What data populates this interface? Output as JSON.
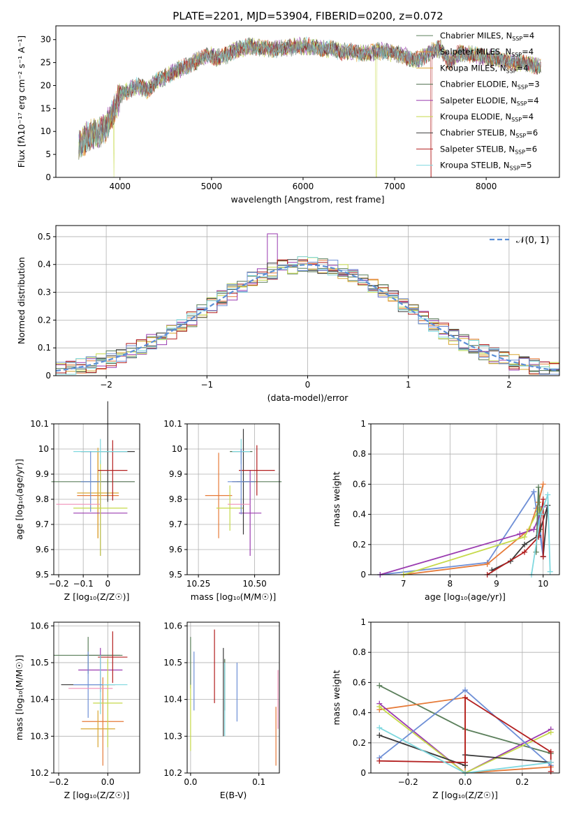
{
  "figure": {
    "title": "PLATE=2201, MJD=53904, FIBERID=0200, z=0.072",
    "colors": [
      "#5b7f5b",
      "#e67a38",
      "#d9a630",
      "#4f6f4f",
      "#9a3bb0",
      "#c6d94a",
      "#3a3a3a",
      "#b31f1f",
      "#7fd8df",
      "#6e8fd6",
      "#f08fb8"
    ]
  },
  "chart_data": [
    {
      "type": "line",
      "name": "spectrum",
      "xlabel": "wavelength [Angstrom, rest frame]",
      "ylabel": "Flux [fλ10⁻¹⁷ erg cm⁻² s⁻¹ A⁻¹]",
      "xlim": [
        3300,
        8800
      ],
      "ylim": [
        0,
        33
      ],
      "xticks": [
        4000,
        5000,
        6000,
        7000,
        8000
      ],
      "yticks": [
        0,
        5,
        10,
        15,
        20,
        25,
        30
      ],
      "grid": false,
      "legend_position": "top-right",
      "legend": [
        {
          "label": "Chabrier MILES, N",
          "sub": "SSP",
          "tail": "=4",
          "color": "#5b7f5b"
        },
        {
          "label": "Salpeter MILES, N",
          "sub": "SSP",
          "tail": "=4",
          "color": "#e67a38"
        },
        {
          "label": "Kroupa MILES, N",
          "sub": "SSP",
          "tail": "=4",
          "color": "#d9a630"
        },
        {
          "label": "Chabrier ELODIE, N",
          "sub": "SSP",
          "tail": "=3",
          "color": "#4f6f4f"
        },
        {
          "label": "Salpeter ELODIE, N",
          "sub": "SSP",
          "tail": "=4",
          "color": "#9a3bb0"
        },
        {
          "label": "Kroupa ELODIE, N",
          "sub": "SSP",
          "tail": "=4",
          "color": "#c6d94a"
        },
        {
          "label": "Chabrier STELIB, N",
          "sub": "SSP",
          "tail": "=6",
          "color": "#3a3a3a"
        },
        {
          "label": "Salpeter STELIB, N",
          "sub": "SSP",
          "tail": "=6",
          "color": "#b31f1f"
        },
        {
          "label": "Kroupa STELIB, N",
          "sub": "SSP",
          "tail": "=5",
          "color": "#7fd8df"
        }
      ],
      "continuum": [
        [
          3550,
          7
        ],
        [
          3650,
          9
        ],
        [
          3750,
          9.5
        ],
        [
          3850,
          11
        ],
        [
          3950,
          15
        ],
        [
          4000,
          18
        ],
        [
          4100,
          19
        ],
        [
          4200,
          20
        ],
        [
          4300,
          19
        ],
        [
          4400,
          21
        ],
        [
          4500,
          22
        ],
        [
          4600,
          23
        ],
        [
          4700,
          24
        ],
        [
          4800,
          25
        ],
        [
          4900,
          26
        ],
        [
          5000,
          26.5
        ],
        [
          5100,
          26
        ],
        [
          5200,
          27
        ],
        [
          5300,
          28
        ],
        [
          5400,
          28.5
        ],
        [
          5500,
          28.5
        ],
        [
          5600,
          28
        ],
        [
          5700,
          28
        ],
        [
          5800,
          28
        ],
        [
          5900,
          28.5
        ],
        [
          6000,
          28.5
        ],
        [
          6100,
          28.5
        ],
        [
          6200,
          28
        ],
        [
          6300,
          28
        ],
        [
          6400,
          27.5
        ],
        [
          6500,
          27.5
        ],
        [
          6600,
          27
        ],
        [
          6700,
          27
        ],
        [
          6800,
          27.5
        ],
        [
          6900,
          27.5
        ],
        [
          7000,
          27
        ],
        [
          7100,
          26.5
        ],
        [
          7200,
          25.5
        ],
        [
          7300,
          26
        ],
        [
          7400,
          27.5
        ],
        [
          7500,
          28
        ],
        [
          7600,
          25
        ],
        [
          7700,
          27
        ],
        [
          7800,
          27
        ],
        [
          7900,
          26.5
        ],
        [
          8000,
          26
        ],
        [
          8100,
          26
        ],
        [
          8200,
          25.5
        ],
        [
          8300,
          25
        ],
        [
          8400,
          25
        ],
        [
          8500,
          24.5
        ],
        [
          8600,
          24
        ]
      ]
    },
    {
      "type": "bar",
      "name": "residual histogram",
      "xlabel": "(data-model)/error",
      "ylabel": "Normed distribution",
      "xlim": [
        -2.5,
        2.5
      ],
      "ylim": [
        0,
        0.54
      ],
      "xticks": [
        -2,
        -1,
        0,
        1,
        2
      ],
      "yticks": [
        0,
        0.1,
        0.2,
        0.3,
        0.4,
        0.5
      ],
      "grid": true,
      "legend_position": "top-right",
      "legend": [
        {
          "label": "𝒩(0, 1)",
          "color": "#5b8fd6"
        }
      ]
    },
    {
      "type": "scatter",
      "name": "age vs Z",
      "xlabel": "Z [log₁₀(Z/Z☉)]",
      "ylabel": "age [log₁₀(age/yr)]",
      "xlim": [
        -0.22,
        0.13
      ],
      "ylim": [
        9.5,
        10.1
      ],
      "xticks": [
        -0.2,
        -0.1,
        0.0
      ],
      "yticks": [
        9.5,
        9.6,
        9.7,
        9.8,
        9.9,
        10.0,
        10.1
      ],
      "grid": true,
      "points": [
        {
          "x": -0.13,
          "xerr": 0.1,
          "y": 9.87,
          "yerr": 0.0,
          "color": "#5b7f5b"
        },
        {
          "x": -0.04,
          "xerr": 0.085,
          "y": 9.815,
          "yerr": 0.17,
          "color": "#e67a38"
        },
        {
          "x": -0.04,
          "xerr": 0.085,
          "y": 9.825,
          "yerr": 0.18,
          "color": "#d9a630"
        },
        {
          "x": 0.0,
          "xerr": 0.11,
          "y": 9.87,
          "yerr": 0.0,
          "color": "#4f6f4f"
        },
        {
          "x": -0.03,
          "xerr": 0.11,
          "y": 9.745,
          "yerr": 0.17,
          "color": "#9a3bb0"
        },
        {
          "x": -0.03,
          "xerr": 0.11,
          "y": 9.765,
          "yerr": 0.19,
          "color": "#c6d94a"
        },
        {
          "x": 0.0,
          "xerr": 0.11,
          "y": 9.99,
          "yerr": 0.2,
          "color": "#3a3a3a"
        },
        {
          "x": 0.02,
          "xerr": 0.06,
          "y": 9.915,
          "yerr": 0.12,
          "color": "#b31f1f"
        },
        {
          "x": -0.03,
          "xerr": 0.11,
          "y": 9.99,
          "yerr": 0.05,
          "color": "#7fd8df"
        },
        {
          "x": -0.07,
          "xerr": 0.04,
          "y": 9.87,
          "yerr": 0.12,
          "color": "#6e8fd6"
        },
        {
          "x": -0.12,
          "xerr": 0.09,
          "y": 9.78,
          "yerr": 0.0,
          "color": "#f08fb8"
        }
      ]
    },
    {
      "type": "scatter",
      "name": "age vs mass",
      "xlabel": "mass [log₁₀(M/M☉)]",
      "ylabel": "",
      "xlim": [
        10.2,
        10.61
      ],
      "ylim": [
        9.5,
        10.1
      ],
      "xticks": [
        10.25,
        10.5
      ],
      "xticklabels": [
        "10.25",
        "10.50"
      ],
      "yticks": [
        9.5,
        9.6,
        9.7,
        9.8,
        9.9,
        10.0,
        10.1
      ],
      "grid": true,
      "points": [
        {
          "x": 10.52,
          "xerr": 0.1,
          "y": 9.87,
          "yerr": 0.0,
          "color": "#5b7f5b"
        },
        {
          "x": 10.34,
          "xerr": 0.06,
          "y": 9.815,
          "yerr": 0.17,
          "color": "#e67a38"
        },
        {
          "x": 10.44,
          "xerr": 0.05,
          "y": 9.99,
          "yerr": 0.0,
          "color": "#4f6f4f"
        },
        {
          "x": 10.48,
          "xerr": 0.05,
          "y": 9.745,
          "yerr": 0.17,
          "color": "#9a3bb0"
        },
        {
          "x": 10.39,
          "xerr": 0.06,
          "y": 9.765,
          "yerr": 0.09,
          "color": "#c6d94a"
        },
        {
          "x": 10.45,
          "xerr": 0.05,
          "y": 9.87,
          "yerr": 0.21,
          "color": "#3a3a3a"
        },
        {
          "x": 10.51,
          "xerr": 0.08,
          "y": 9.915,
          "yerr": 0.1,
          "color": "#b31f1f"
        },
        {
          "x": 10.44,
          "xerr": 0.04,
          "y": 9.99,
          "yerr": 0.05,
          "color": "#7fd8df"
        },
        {
          "x": 10.44,
          "xerr": 0.06,
          "y": 9.87,
          "yerr": 0.13,
          "color": "#6e8fd6"
        },
        {
          "x": 10.43,
          "xerr": 0.05,
          "y": 9.78,
          "yerr": 0.0,
          "color": "#f08fb8"
        }
      ]
    },
    {
      "type": "line",
      "name": "mass weight vs age",
      "xlabel": "age [log₁₀(age/yr)]",
      "ylabel": "mass weight",
      "xlim": [
        6.3,
        10.35
      ],
      "ylim": [
        0,
        1.0
      ],
      "xticks": [
        7,
        8,
        9,
        10
      ],
      "yticks": [
        0,
        0.2,
        0.4,
        0.6,
        0.8,
        1.0
      ],
      "grid": true,
      "series": [
        {
          "color": "#6e8fd6",
          "points": [
            [
              6.5,
              0
            ],
            [
              8.8,
              0.08
            ],
            [
              9.8,
              0.55
            ],
            [
              10.0,
              0.12
            ],
            [
              9.9,
              0.4
            ],
            [
              9.85,
              0.44
            ]
          ]
        },
        {
          "color": "#e67a38",
          "points": [
            [
              7.0,
              0
            ],
            [
              8.8,
              0.07
            ],
            [
              9.7,
              0.3
            ],
            [
              9.9,
              0.48
            ],
            [
              10.0,
              0.6
            ]
          ]
        },
        {
          "color": "#9a3bb0",
          "points": [
            [
              6.5,
              0
            ],
            [
              9.5,
              0.27
            ],
            [
              9.8,
              0.3
            ],
            [
              10.0,
              0.45
            ]
          ]
        },
        {
          "color": "#c6d94a",
          "points": [
            [
              7.0,
              0
            ],
            [
              9.6,
              0.25
            ],
            [
              9.9,
              0.43
            ],
            [
              9.95,
              0.43
            ]
          ]
        },
        {
          "color": "#5b7f5b",
          "points": [
            [
              9.85,
              0.15
            ],
            [
              9.9,
              0.58
            ],
            [
              9.95,
              0.3
            ]
          ]
        },
        {
          "color": "#3a3a3a",
          "points": [
            [
              8.9,
              0.03
            ],
            [
              9.3,
              0.09
            ],
            [
              9.6,
              0.2
            ],
            [
              9.9,
              0.26
            ],
            [
              10.1,
              0.46
            ],
            [
              10.0,
              0.12
            ]
          ]
        },
        {
          "color": "#b31f1f",
          "points": [
            [
              8.8,
              0
            ],
            [
              9.6,
              0.15
            ],
            [
              9.9,
              0.25
            ],
            [
              10.0,
              0.5
            ],
            [
              10.0,
              0.12
            ]
          ]
        },
        {
          "color": "#7fd8df",
          "points": [
            [
              9.75,
              0.0
            ],
            [
              9.95,
              0.4
            ],
            [
              10.1,
              0.53
            ],
            [
              10.15,
              0.02
            ]
          ]
        }
      ]
    },
    {
      "type": "scatter",
      "name": "mass vs Z",
      "xlabel": "Z [log₁₀(Z/Z☉)]",
      "ylabel": "mass [log₁₀(M/M☉)]",
      "xlim": [
        -0.22,
        0.13
      ],
      "ylim": [
        10.2,
        10.61
      ],
      "xticks": [
        -0.2,
        0.0
      ],
      "xticklabels": [
        "−0.2",
        "0.0"
      ],
      "yticks": [
        10.2,
        10.3,
        10.4,
        10.5,
        10.6
      ],
      "grid": true,
      "points": [
        {
          "x": -0.08,
          "xerr": 0.14,
          "y": 10.52,
          "yerr": 0.05,
          "color": "#5b7f5b"
        },
        {
          "x": -0.02,
          "xerr": 0.085,
          "y": 10.34,
          "yerr": 0.12,
          "color": "#e67a38"
        },
        {
          "x": -0.04,
          "xerr": 0.07,
          "y": 10.32,
          "yerr": 0.05,
          "color": "#d9a630"
        },
        {
          "x": -0.02,
          "xerr": 0.07,
          "y": 10.52,
          "yerr": 0.0,
          "color": "#4f6f4f"
        },
        {
          "x": -0.03,
          "xerr": 0.09,
          "y": 10.48,
          "yerr": 0.06,
          "color": "#9a3bb0"
        },
        {
          "x": 0.0,
          "xerr": 0.06,
          "y": 10.39,
          "yerr": 0.12,
          "color": "#c6d94a"
        },
        {
          "x": -0.08,
          "xerr": 0.11,
          "y": 10.44,
          "yerr": 0.0,
          "color": "#3a3a3a"
        },
        {
          "x": 0.02,
          "xerr": 0.06,
          "y": 10.515,
          "yerr": 0.07,
          "color": "#b31f1f"
        },
        {
          "x": -0.03,
          "xerr": 0.11,
          "y": 10.44,
          "yerr": 0.08,
          "color": "#7fd8df"
        },
        {
          "x": -0.08,
          "xerr": 0.06,
          "y": 10.44,
          "yerr": 0.09,
          "color": "#6e8fd6"
        },
        {
          "x": -0.07,
          "xerr": 0.09,
          "y": 10.43,
          "yerr": 0.0,
          "color": "#f08fb8"
        }
      ]
    },
    {
      "type": "scatter",
      "name": "mass vs E(B-V)",
      "xlabel": "E(B-V)",
      "ylabel": "",
      "xlim": [
        -0.005,
        0.13
      ],
      "ylim": [
        10.2,
        10.61
      ],
      "xticks": [
        0.0,
        0.1
      ],
      "xticklabels": [
        "0.0",
        "0.1"
      ],
      "yticks": [
        10.2,
        10.3,
        10.4,
        10.5,
        10.6
      ],
      "grid": true,
      "points": [
        {
          "x": 0.0,
          "y": 10.5,
          "yerr": 0.07,
          "color": "#5b7f5b"
        },
        {
          "x": 0.125,
          "y": 10.3,
          "yerr": 0.08,
          "color": "#e67a38"
        },
        {
          "x": 0.05,
          "y": 10.44,
          "yerr": 0.07,
          "color": "#4f6f4f"
        },
        {
          "x": 0.0,
          "y": 10.35,
          "yerr": 0.09,
          "color": "#c6d94a"
        },
        {
          "x": 0.048,
          "y": 10.42,
          "yerr": 0.12,
          "color": "#3a3a3a"
        },
        {
          "x": 0.035,
          "y": 10.49,
          "yerr": 0.1,
          "color": "#b31f1f"
        },
        {
          "x": 0.05,
          "y": 10.4,
          "yerr": 0.1,
          "color": "#7fd8df"
        },
        {
          "x": 0.068,
          "y": 10.42,
          "yerr": 0.08,
          "color": "#6e8fd6"
        },
        {
          "x": 0.005,
          "y": 10.45,
          "yerr": 0.08,
          "color": "#6e8fd6"
        },
        {
          "x": 0.128,
          "y": 10.4,
          "yerr": 0.08,
          "color": "#f08fb8"
        }
      ]
    },
    {
      "type": "line",
      "name": "mass weight vs Z",
      "xlabel": "Z [log₁₀(Z/Z☉)]",
      "ylabel": "mass weight",
      "xlim": [
        -0.33,
        0.33
      ],
      "ylim": [
        0,
        1.0
      ],
      "xticks": [
        -0.2,
        0.0,
        0.2
      ],
      "xticklabels": [
        "−0.2",
        "0.0",
        "0.2"
      ],
      "yticks": [
        0,
        0.2,
        0.4,
        0.6,
        0.8,
        1.0
      ],
      "grid": true,
      "series": [
        {
          "color": "#5b7f5b",
          "points": [
            [
              -0.3,
              0.58
            ],
            [
              0.0,
              0.29
            ],
            [
              0.3,
              0.13
            ]
          ]
        },
        {
          "color": "#e67a38",
          "points": [
            [
              -0.3,
              0.42
            ],
            [
              0.0,
              0.5
            ],
            [
              0.0,
              0.0
            ],
            [
              0.3,
              0.04
            ]
          ]
        },
        {
          "color": "#9a3bb0",
          "points": [
            [
              -0.3,
              0.46
            ],
            [
              0.0,
              0.0
            ],
            [
              0.3,
              0.29
            ]
          ]
        },
        {
          "color": "#c6d94a",
          "points": [
            [
              -0.3,
              0.44
            ],
            [
              0.0,
              0.0
            ],
            [
              0.3,
              0.27
            ]
          ]
        },
        {
          "color": "#6e8fd6",
          "points": [
            [
              -0.3,
              0.1
            ],
            [
              0.0,
              0.55
            ],
            [
              0.3,
              0.05
            ]
          ]
        },
        {
          "color": "#3a3a3a",
          "points": [
            [
              -0.3,
              0.25
            ],
            [
              0.0,
              0.05
            ],
            [
              0.0,
              0.12
            ],
            [
              0.3,
              0.07
            ]
          ]
        },
        {
          "color": "#b31f1f",
          "points": [
            [
              -0.3,
              0.08
            ],
            [
              0.0,
              0.07
            ],
            [
              0.0,
              0.5
            ],
            [
              0.3,
              0.14
            ],
            [
              0.3,
              0.01
            ]
          ]
        },
        {
          "color": "#7fd8df",
          "points": [
            [
              -0.3,
              0.3
            ],
            [
              0.0,
              0.0
            ],
            [
              0.3,
              0.07
            ]
          ]
        }
      ]
    }
  ]
}
